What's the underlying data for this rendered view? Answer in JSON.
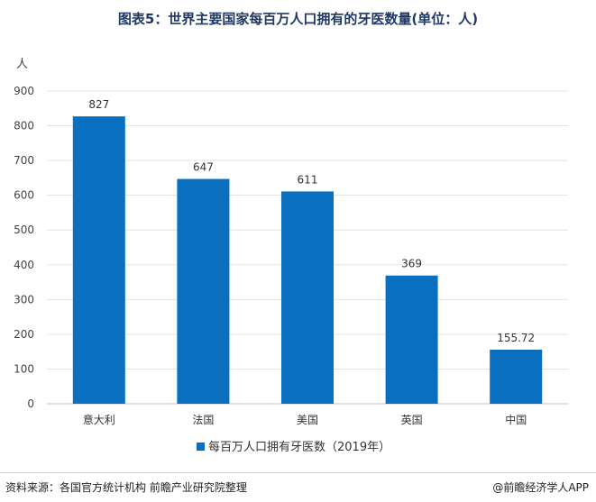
{
  "chart_data": {
    "type": "bar",
    "title": "图表5：世界主要国家每百万人口拥有的牙医数量(单位：人)",
    "ylabel": "人",
    "categories": [
      "意大利",
      "法国",
      "美国",
      "英国",
      "中国"
    ],
    "series": [
      {
        "name": "每百万人口拥有牙医数（2019年）",
        "values": [
          827,
          647,
          611,
          369,
          155.72
        ],
        "labels": [
          "827",
          "647",
          "611",
          "369",
          "155.72"
        ],
        "color": "#0b6fbf"
      }
    ],
    "ylim": [
      0,
      900
    ],
    "yticks": [
      0,
      100,
      200,
      300,
      400,
      500,
      600,
      700,
      800,
      900
    ],
    "grid": true,
    "legend": "bottom"
  },
  "footer": {
    "source": "资料来源：各国官方统计机构 前瞻产业研究院整理",
    "brand": "@前瞻经济学人APP"
  }
}
